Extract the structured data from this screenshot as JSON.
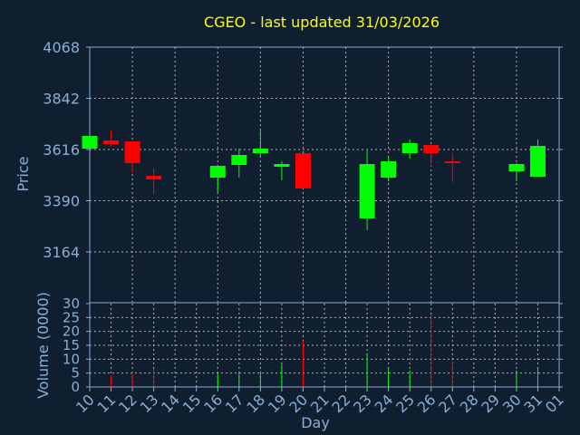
{
  "chart_data": {
    "type": "candlestick",
    "title": "CGEO - last updated 31/03/2026",
    "xlabel": "Day",
    "price_ylabel": "Price",
    "volume_ylabel": "Volume (0000)",
    "price_ticks": [
      4068,
      3842,
      3616,
      3390,
      3164
    ],
    "price_ylim": [
      2940,
      4068
    ],
    "volume_ticks": [
      0,
      5,
      10,
      15,
      20,
      25,
      30
    ],
    "volume_ylim": [
      0,
      30
    ],
    "x_ticks": [
      "10",
      "11",
      "12",
      "13",
      "14",
      "15",
      "16",
      "17",
      "18",
      "19",
      "20",
      "21",
      "22",
      "23",
      "24",
      "25",
      "26",
      "27",
      "28",
      "29",
      "30",
      "31",
      "01"
    ],
    "candles": [
      {
        "day": "10",
        "open": 3620,
        "high": 3676,
        "low": 3620,
        "close": 3676,
        "volume": 0
      },
      {
        "day": "11",
        "open": 3656,
        "high": 3700,
        "low": 3628,
        "close": 3640,
        "volume": 4.2
      },
      {
        "day": "12",
        "open": 3652,
        "high": 3652,
        "low": 3512,
        "close": 3556,
        "volume": 5.2
      },
      {
        "day": "13",
        "open": 3500,
        "high": 3532,
        "low": 3420,
        "close": 3484,
        "volume": 6.5
      },
      {
        "day": "16",
        "open": 3492,
        "high": 3544,
        "low": 3428,
        "close": 3544,
        "volume": 4.9
      },
      {
        "day": "17",
        "open": 3548,
        "high": 3620,
        "low": 3492,
        "close": 3592,
        "volume": 4.9
      },
      {
        "day": "18",
        "open": 3600,
        "high": 3700,
        "low": 3580,
        "close": 3620,
        "volume": 4.9
      },
      {
        "day": "19",
        "open": 3540,
        "high": 3564,
        "low": 3480,
        "close": 3552,
        "volume": 8.1
      },
      {
        "day": "20",
        "open": 3600,
        "high": 3600,
        "low": 3444,
        "close": 3444,
        "volume": 16.6
      },
      {
        "day": "23",
        "open": 3312,
        "high": 3612,
        "low": 3260,
        "close": 3552,
        "volume": 12
      },
      {
        "day": "24",
        "open": 3492,
        "high": 3580,
        "low": 3476,
        "close": 3564,
        "volume": 6.5
      },
      {
        "day": "25",
        "open": 3600,
        "high": 3660,
        "low": 3576,
        "close": 3644,
        "volume": 5.9
      },
      {
        "day": "26",
        "open": 3636,
        "high": 3636,
        "low": 3540,
        "close": 3600,
        "volume": 26
      },
      {
        "day": "27",
        "open": 3564,
        "high": 3600,
        "low": 3472,
        "close": 3560,
        "volume": 9.4
      },
      {
        "day": "30",
        "open": 3520,
        "high": 3556,
        "low": 3476,
        "close": 3552,
        "volume": 5.9
      },
      {
        "day": "31",
        "open": 3496,
        "high": 3660,
        "low": 3496,
        "close": 3632,
        "volume": 6.6
      }
    ],
    "colors": {
      "up": "#00ff00",
      "down": "#ff0000",
      "background": "#0f1f2f",
      "axis": "#8aaed6",
      "title": "#ffff00",
      "grid": "#b0b0b0"
    }
  }
}
